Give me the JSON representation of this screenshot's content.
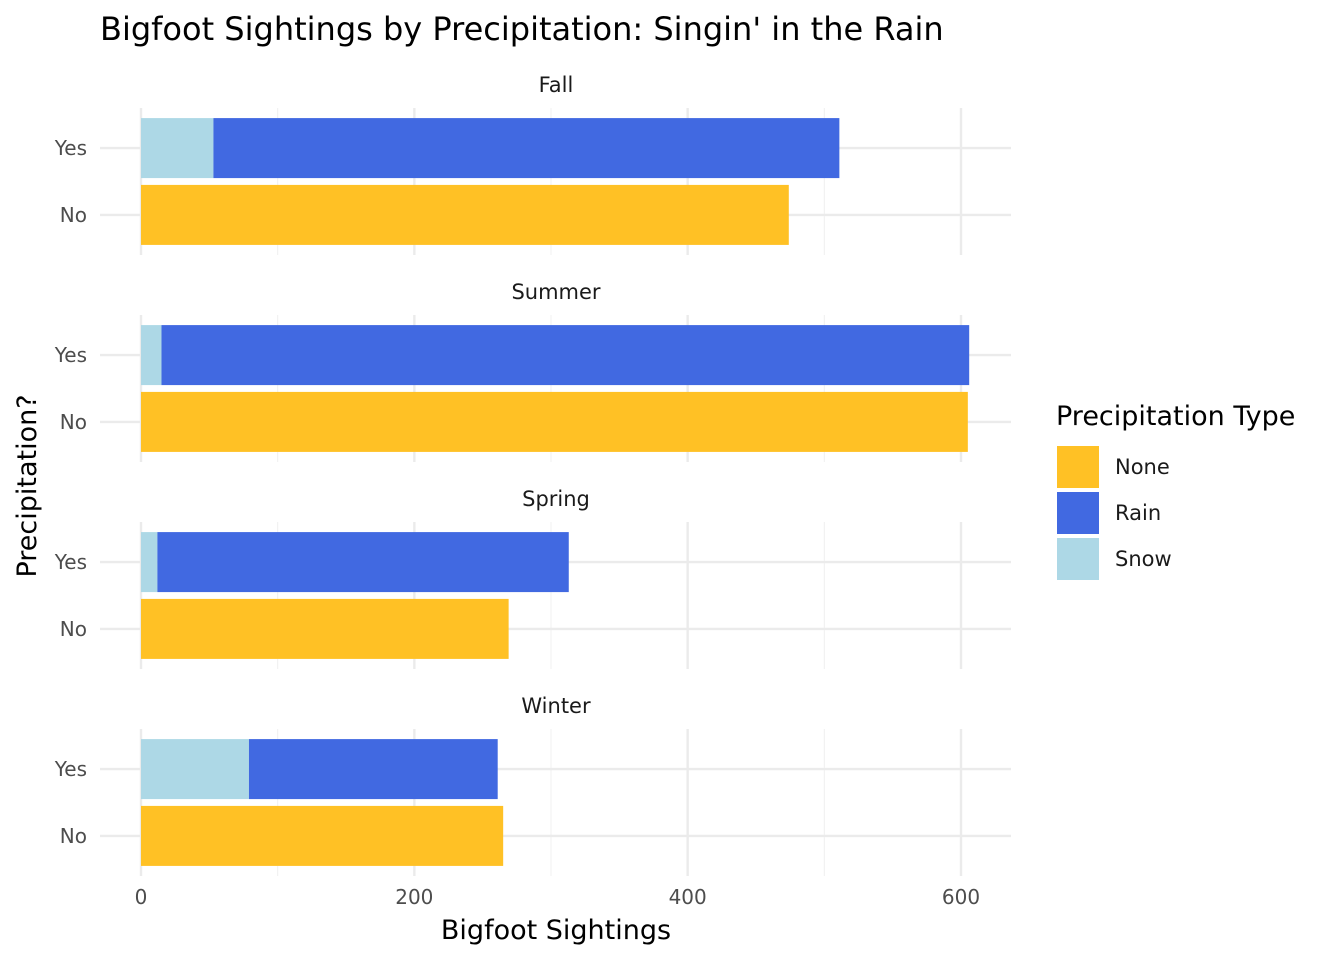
{
  "chart_data": {
    "type": "bar",
    "orientation": "horizontal",
    "stacked": true,
    "faceted": true,
    "title": "Bigfoot Sightings by Precipitation: Singin' in the Rain",
    "xlabel": "Bigfoot Sightings",
    "ylabel": "Precipitation?",
    "xlim": [
      -25,
      637
    ],
    "x_ticks": [
      0,
      200,
      400,
      600
    ],
    "x_tick_labels": [
      "0",
      "200",
      "400",
      "600"
    ],
    "grid": true,
    "legend_position": "right",
    "legend_title": "Precipitation Type",
    "series": [
      {
        "name": "None",
        "color": "#FFC125"
      },
      {
        "name": "Rain",
        "color": "#4169E1"
      },
      {
        "name": "Snow",
        "color": "#ADD8E6"
      }
    ],
    "categories": [
      "Yes",
      "No"
    ],
    "facets": [
      {
        "label": "Fall",
        "bars": [
          {
            "category": "Yes",
            "segments": [
              {
                "series": "Snow",
                "value": 53
              },
              {
                "series": "Rain",
                "value": 458
              }
            ]
          },
          {
            "category": "No",
            "segments": [
              {
                "series": "None",
                "value": 474
              }
            ]
          }
        ]
      },
      {
        "label": "Summer",
        "bars": [
          {
            "category": "Yes",
            "segments": [
              {
                "series": "Snow",
                "value": 15
              },
              {
                "series": "Rain",
                "value": 591
              }
            ]
          },
          {
            "category": "No",
            "segments": [
              {
                "series": "None",
                "value": 605
              }
            ]
          }
        ]
      },
      {
        "label": "Spring",
        "bars": [
          {
            "category": "Yes",
            "segments": [
              {
                "series": "Snow",
                "value": 12
              },
              {
                "series": "Rain",
                "value": 301
              }
            ]
          },
          {
            "category": "No",
            "segments": [
              {
                "series": "None",
                "value": 269
              }
            ]
          }
        ]
      },
      {
        "label": "Winter",
        "bars": [
          {
            "category": "Yes",
            "segments": [
              {
                "series": "Snow",
                "value": 79
              },
              {
                "series": "Rain",
                "value": 182
              }
            ]
          },
          {
            "category": "No",
            "segments": [
              {
                "series": "None",
                "value": 265
              }
            ]
          }
        ]
      }
    ]
  }
}
